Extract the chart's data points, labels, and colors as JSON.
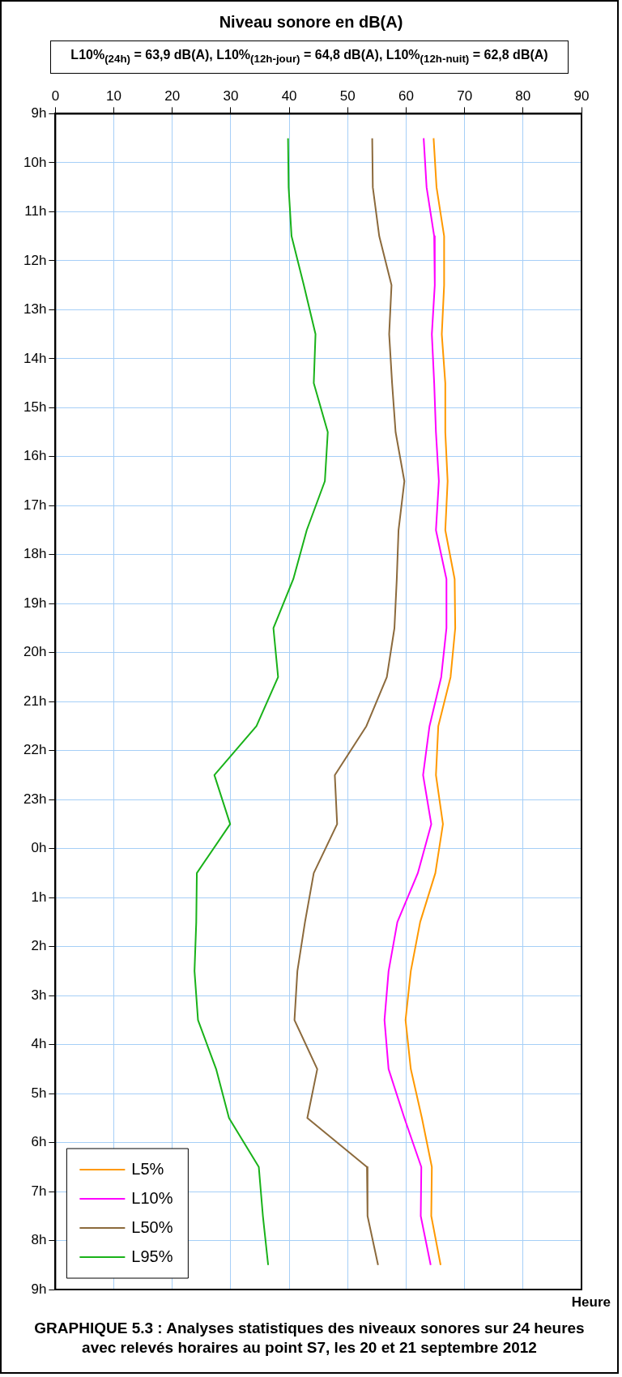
{
  "chart_data": {
    "type": "line",
    "orientation": "horizontal",
    "title": "GRAPHIQUE 5.3 : Analyses statistiques des niveaux sonores sur 24 heures avec relevés horaires au point S7, les 20 et 21 septembre 2012",
    "xlabel": "Niveau sonore en dB(A)",
    "ylabel": "Heure",
    "annotations": [
      "L10%$_{(24h)}$ = 63,9 dB(A), L10%$_{(12h-jour)}$ = 64,8 dB(A), L10%$_{(12h-nuit)}$ = 62,8 dB(A)"
    ],
    "x": [
      "2012-09-20T09:30",
      "2012-09-20T10:30",
      "2012-09-20T11:30",
      "2012-09-20T12:30",
      "2012-09-20T13:30",
      "2012-09-20T14:30",
      "2012-09-20T15:30",
      "2012-09-20T16:30",
      "2012-09-20T17:30",
      "2012-09-20T18:30",
      "2012-09-20T19:30",
      "2012-09-20T20:30",
      "2012-09-20T21:30",
      "2012-09-20T22:30",
      "2012-09-20T23:30",
      "2012-09-21T00:30",
      "2012-09-21T01:30",
      "2012-09-21T02:30",
      "2012-09-21T03:30",
      "2012-09-21T04:30",
      "2012-09-21T05:30",
      "2012-09-21T06:30",
      "2012-09-21T07:30",
      "2012-09-21T08:30"
    ],
    "series": [
      {
        "name": "L5%",
        "color": "#ff9900",
        "values": [
          64.7,
          65.2,
          66.5,
          66.5,
          66.1,
          66.7,
          66.7,
          67.1,
          66.7,
          68.3,
          68.4,
          67.6,
          65.5,
          65.1,
          66.3,
          65.0,
          62.4,
          60.8,
          59.9,
          60.8,
          62.7,
          64.4,
          64.3,
          65.9
        ]
      },
      {
        "name": "L10%",
        "color": "#ff00ff",
        "values": [
          63.0,
          63.5,
          64.8,
          64.9,
          64.4,
          64.8,
          65.1,
          65.6,
          65.1,
          66.9,
          66.9,
          66.0,
          64.0,
          62.9,
          64.3,
          62.0,
          58.5,
          57.0,
          56.3,
          57.0,
          59.7,
          62.6,
          62.5,
          64.2
        ]
      },
      {
        "name": "L50%",
        "color": "#8c6a3c",
        "values": [
          54.2,
          54.3,
          55.4,
          57.5,
          57.1,
          57.6,
          58.2,
          59.7,
          58.7,
          58.4,
          58.0,
          56.7,
          53.2,
          47.8,
          48.2,
          44.2,
          42.7,
          41.4,
          40.9,
          44.8,
          43.1,
          53.3,
          53.4,
          55.2
        ]
      },
      {
        "name": "L95%",
        "color": "#19b219",
        "values": [
          39.8,
          39.9,
          40.4,
          42.5,
          44.5,
          44.2,
          46.6,
          46.1,
          43.0,
          40.7,
          37.3,
          38.1,
          34.4,
          27.2,
          29.9,
          24.2,
          24.1,
          23.8,
          24.4,
          27.5,
          29.7,
          34.8,
          35.5,
          36.4
        ]
      }
    ],
    "xlim": [
      0,
      90
    ],
    "xticks": [
      0,
      10,
      20,
      30,
      40,
      50,
      60,
      70,
      80,
      90
    ],
    "ylim": [
      "2012-09-21T09:00",
      "2012-09-20T09:00"
    ],
    "yticks": [
      {
        "value": "2012-09-20T09:00",
        "label": "9h"
      },
      {
        "value": "2012-09-20T10:00",
        "label": "10h"
      },
      {
        "value": "2012-09-20T11:00",
        "label": "11h"
      },
      {
        "value": "2012-09-20T12:00",
        "label": "12h"
      },
      {
        "value": "2012-09-20T13:00",
        "label": "13h"
      },
      {
        "value": "2012-09-20T14:00",
        "label": "14h"
      },
      {
        "value": "2012-09-20T15:00",
        "label": "15h"
      },
      {
        "value": "2012-09-20T16:00",
        "label": "16h"
      },
      {
        "value": "2012-09-20T17:00",
        "label": "17h"
      },
      {
        "value": "2012-09-20T18:00",
        "label": "18h"
      },
      {
        "value": "2012-09-20T19:00",
        "label": "19h"
      },
      {
        "value": "2012-09-20T20:00",
        "label": "20h"
      },
      {
        "value": "2012-09-20T21:00",
        "label": "21h"
      },
      {
        "value": "2012-09-20T22:00",
        "label": "22h"
      },
      {
        "value": "2012-09-20T23:00",
        "label": "23h"
      },
      {
        "value": "2012-09-21T00:00",
        "label": "0h"
      },
      {
        "value": "2012-09-21T01:00",
        "label": "1h"
      },
      {
        "value": "2012-09-21T02:00",
        "label": "2h"
      },
      {
        "value": "2012-09-21T03:00",
        "label": "3h"
      },
      {
        "value": "2012-09-21T04:00",
        "label": "4h"
      },
      {
        "value": "2012-09-21T05:00",
        "label": "5h"
      },
      {
        "value": "2012-09-21T06:00",
        "label": "6h"
      },
      {
        "value": "2012-09-21T07:00",
        "label": "7h"
      },
      {
        "value": "2012-09-21T08:00",
        "label": "8h"
      },
      {
        "value": "2012-09-21T09:00",
        "label": "9h"
      }
    ],
    "grid": true,
    "legend": "bottom left",
    "marker": "none",
    "line_style": "solid"
  }
}
